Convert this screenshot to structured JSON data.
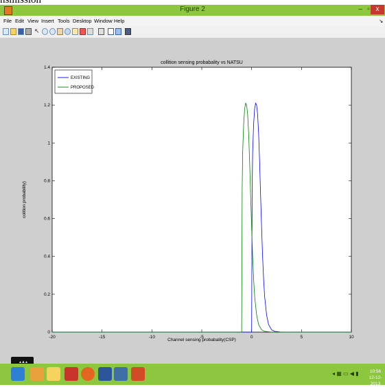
{
  "page_top_text": "nsmission",
  "window": {
    "title": "Figure 2",
    "min_label": "–",
    "max_label": "▫",
    "close_label": "x"
  },
  "menu": {
    "items": [
      "File",
      "Edit",
      "View",
      "Insert",
      "Tools",
      "Desktop",
      "Window",
      "Help"
    ],
    "arrow": "↘"
  },
  "toolbar": {
    "icons": [
      "new-figure-icon",
      "open-icon",
      "save-icon",
      "print-icon",
      "pointer-icon",
      "zoom-in-icon",
      "zoom-out-icon",
      "pan-icon",
      "rotate-icon",
      "data-cursor-icon",
      "brush-icon",
      "link-icon",
      "colorbar-icon",
      "legend-icon",
      "hide-tools-icon",
      "dock-icon"
    ]
  },
  "colors": {
    "existing": "#0000ff",
    "proposed": "#008000",
    "titlebar": "#8dc63f",
    "figure_bg": "#cfcfcf"
  },
  "chart_data": {
    "type": "line",
    "title": "collition sensing probabality vs NATSU",
    "xlabel": "Channel sensing probabality(CSP)",
    "ylabel": "colition probability)",
    "xlim": [
      -20,
      10
    ],
    "ylim": [
      0,
      1.4
    ],
    "x_ticks": [
      "-20",
      "-15",
      "-10",
      "-5",
      "0",
      "5",
      "10"
    ],
    "y_ticks": [
      "0",
      "0.2",
      "0.4",
      "0.6",
      "0.8",
      "1",
      "1.2",
      "1.4"
    ],
    "grid": false,
    "legend_position": "top-left",
    "series": [
      {
        "name": "EXISTING",
        "color": "#0000ff",
        "x": [
          -20,
          0,
          0.05,
          0.1,
          0.2,
          0.3,
          0.4,
          0.5,
          0.6,
          0.7,
          0.8,
          0.9,
          1.0,
          1.1,
          1.2,
          1.3,
          1.5,
          1.7,
          2.0,
          2.3,
          3.0,
          4.5,
          10
        ],
        "y": [
          0,
          0,
          0.75,
          0.95,
          1.1,
          1.18,
          1.21,
          1.2,
          1.15,
          1.05,
          0.9,
          0.72,
          0.55,
          0.4,
          0.28,
          0.19,
          0.09,
          0.04,
          0.012,
          0.004,
          0,
          0,
          0
        ]
      },
      {
        "name": "PROPOSED",
        "color": "#008000",
        "x": [
          -20,
          -1.0,
          -0.95,
          -0.9,
          -0.8,
          -0.7,
          -0.6,
          -0.5,
          -0.4,
          -0.3,
          -0.2,
          -0.1,
          0.0,
          0.1,
          0.2,
          0.3,
          0.5,
          0.7,
          1.0,
          1.3,
          2.0,
          3.5,
          10
        ],
        "y": [
          0,
          0,
          0.75,
          0.95,
          1.1,
          1.18,
          1.21,
          1.2,
          1.15,
          1.05,
          0.9,
          0.72,
          0.55,
          0.4,
          0.28,
          0.19,
          0.09,
          0.04,
          0.012,
          0.004,
          0,
          0,
          0
        ]
      }
    ]
  },
  "taskbar": {
    "icons": [
      "ie-icon",
      "media-player-icon",
      "file-explorer-icon",
      "app-k-icon",
      "firefox-icon",
      "word-icon",
      "matlab-icon",
      "powerpoint-icon"
    ],
    "clock_time": "10:56",
    "clock_date": "12-12-2013",
    "tray_glyphs": "◂ ▦ ▭ ◀ ▮"
  }
}
